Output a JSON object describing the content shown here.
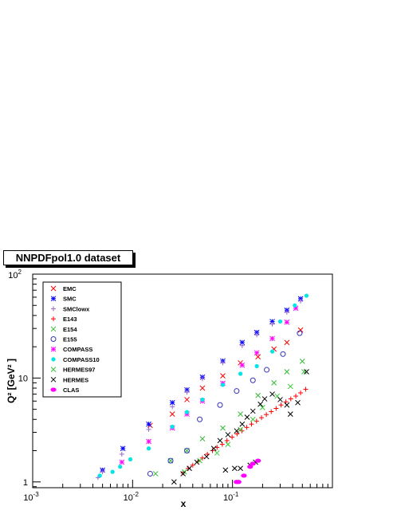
{
  "title": "NNPDFpol1.0 dataset",
  "chart_data": {
    "type": "scatter",
    "xlabel": "x",
    "ylabel": "Q² [GeV² ]",
    "xscale": "log",
    "yscale": "log",
    "xlim": [
      0.001,
      1.0
    ],
    "ylim": [
      0.88,
      100
    ],
    "x_tick_labels": [
      {
        "value": 0.001,
        "base": "10",
        "exp": "-3"
      },
      {
        "value": 0.01,
        "base": "10",
        "exp": "-2"
      },
      {
        "value": 0.1,
        "base": "10",
        "exp": "-1"
      }
    ],
    "y_tick_labels": [
      {
        "value": 1,
        "text": "1"
      },
      {
        "value": 10,
        "text": "10"
      },
      {
        "value": 100,
        "base": "10",
        "exp": "2"
      }
    ],
    "grid": false,
    "legend_position": "top-left",
    "series": [
      {
        "name": "EMC",
        "marker": "x",
        "color": "#ff0000",
        "points": [
          [
            0.015,
            3.5
          ],
          [
            0.025,
            4.5
          ],
          [
            0.035,
            6.2
          ],
          [
            0.05,
            8.0
          ],
          [
            0.08,
            10.5
          ],
          [
            0.12,
            14.0
          ],
          [
            0.18,
            16.0
          ],
          [
            0.26,
            19.0
          ],
          [
            0.35,
            22.0
          ],
          [
            0.48,
            29.0
          ]
        ]
      },
      {
        "name": "SMC",
        "marker": "asterisk",
        "color": "#0000ff",
        "points": [
          [
            0.005,
            1.3
          ],
          [
            0.008,
            2.1
          ],
          [
            0.0145,
            3.6
          ],
          [
            0.025,
            5.8
          ],
          [
            0.035,
            7.7
          ],
          [
            0.05,
            10.2
          ],
          [
            0.08,
            14.6
          ],
          [
            0.125,
            22.0
          ],
          [
            0.175,
            27.5
          ],
          [
            0.25,
            35.0
          ],
          [
            0.35,
            45.0
          ],
          [
            0.48,
            58.0
          ]
        ]
      },
      {
        "name": "SMClowx",
        "marker": "plus",
        "color": "#9966cc",
        "points": [
          [
            0.0045,
            1.1
          ],
          [
            0.005,
            1.25
          ],
          [
            0.0078,
            1.85
          ],
          [
            0.0145,
            3.2
          ],
          [
            0.025,
            5.3
          ],
          [
            0.035,
            7.3
          ],
          [
            0.05,
            9.8
          ],
          [
            0.08,
            14.0
          ],
          [
            0.125,
            20.5
          ],
          [
            0.175,
            26.0
          ],
          [
            0.25,
            33.0
          ],
          [
            0.35,
            43.0
          ],
          [
            0.48,
            55.0
          ]
        ]
      },
      {
        "name": "E143",
        "marker": "plus",
        "color": "#ff0000",
        "points": [
          [
            0.032,
            1.22
          ],
          [
            0.036,
            1.35
          ],
          [
            0.04,
            1.45
          ],
          [
            0.045,
            1.57
          ],
          [
            0.05,
            1.7
          ],
          [
            0.056,
            1.85
          ],
          [
            0.063,
            2.0
          ],
          [
            0.07,
            2.15
          ],
          [
            0.079,
            2.3
          ],
          [
            0.088,
            2.5
          ],
          [
            0.099,
            2.7
          ],
          [
            0.111,
            2.9
          ],
          [
            0.124,
            3.1
          ],
          [
            0.139,
            3.35
          ],
          [
            0.155,
            3.6
          ],
          [
            0.174,
            3.85
          ],
          [
            0.195,
            4.15
          ],
          [
            0.218,
            4.45
          ],
          [
            0.244,
            4.75
          ],
          [
            0.273,
            5.1
          ],
          [
            0.306,
            5.5
          ],
          [
            0.342,
            5.9
          ],
          [
            0.383,
            6.3
          ],
          [
            0.43,
            6.7
          ],
          [
            0.48,
            7.2
          ],
          [
            0.54,
            7.8
          ]
        ]
      },
      {
        "name": "E154",
        "marker": "x",
        "color": "#33bb33",
        "points": [
          [
            0.017,
            1.2
          ],
          [
            0.024,
            1.6
          ],
          [
            0.035,
            2.0
          ],
          [
            0.05,
            2.6
          ],
          [
            0.08,
            3.3
          ],
          [
            0.12,
            4.5
          ],
          [
            0.18,
            6.8
          ],
          [
            0.26,
            9.0
          ],
          [
            0.35,
            11.5
          ],
          [
            0.5,
            14.5
          ]
        ]
      },
      {
        "name": "E155",
        "marker": "circle",
        "color": "#3333bb",
        "points": [
          [
            0.015,
            1.2
          ],
          [
            0.024,
            1.6
          ],
          [
            0.035,
            2.0
          ],
          [
            0.047,
            4.0
          ],
          [
            0.075,
            5.5
          ],
          [
            0.11,
            7.5
          ],
          [
            0.16,
            9.5
          ],
          [
            0.22,
            12.0
          ],
          [
            0.32,
            17.0
          ],
          [
            0.47,
            27.0
          ]
        ]
      },
      {
        "name": "COMPASS",
        "marker": "asterisk",
        "color": "#ff00ff",
        "points": [
          [
            0.0078,
            1.55
          ],
          [
            0.0145,
            2.45
          ],
          [
            0.025,
            3.3
          ],
          [
            0.035,
            4.5
          ],
          [
            0.05,
            6.0
          ],
          [
            0.08,
            8.9
          ],
          [
            0.125,
            13.3
          ],
          [
            0.175,
            17.5
          ],
          [
            0.25,
            24.0
          ],
          [
            0.35,
            34.5
          ],
          [
            0.43,
            47.0
          ]
        ]
      },
      {
        "name": "COMPASS10",
        "marker": "filled-circle",
        "color": "#00e5e5",
        "points": [
          [
            0.0047,
            1.15
          ],
          [
            0.0063,
            1.25
          ],
          [
            0.0075,
            1.4
          ],
          [
            0.0095,
            1.65
          ],
          [
            0.0145,
            2.1
          ],
          [
            0.025,
            3.4
          ],
          [
            0.035,
            4.7
          ],
          [
            0.05,
            6.2
          ],
          [
            0.08,
            8.6
          ],
          [
            0.12,
            11.0
          ],
          [
            0.175,
            13.0
          ],
          [
            0.25,
            18.0
          ],
          [
            0.3,
            35.0
          ],
          [
            0.42,
            50.0
          ],
          [
            0.55,
            62.0
          ]
        ]
      },
      {
        "name": "HERMES97",
        "marker": "x",
        "color": "#33cc33",
        "points": [
          [
            0.033,
            1.25
          ],
          [
            0.047,
            1.6
          ],
          [
            0.07,
            1.9
          ],
          [
            0.09,
            2.3
          ],
          [
            0.12,
            3.2
          ],
          [
            0.16,
            4.0
          ],
          [
            0.2,
            5.2
          ],
          [
            0.28,
            6.7
          ],
          [
            0.38,
            8.3
          ],
          [
            0.52,
            11.5
          ]
        ]
      },
      {
        "name": "HERMES",
        "marker": "x",
        "color": "#000000",
        "points": [
          [
            0.026,
            1.0
          ],
          [
            0.032,
            1.2
          ],
          [
            0.037,
            1.35
          ],
          [
            0.044,
            1.55
          ],
          [
            0.055,
            1.75
          ],
          [
            0.065,
            2.1
          ],
          [
            0.075,
            2.5
          ],
          [
            0.085,
            1.3
          ],
          [
            0.09,
            2.85
          ],
          [
            0.105,
            1.35
          ],
          [
            0.11,
            3.1
          ],
          [
            0.12,
            1.35
          ],
          [
            0.125,
            3.6
          ],
          [
            0.14,
            4.2
          ],
          [
            0.15,
            1.45
          ],
          [
            0.16,
            4.8
          ],
          [
            0.17,
            1.55
          ],
          [
            0.19,
            5.6
          ],
          [
            0.21,
            6.3
          ],
          [
            0.25,
            7.0
          ],
          [
            0.3,
            6.2
          ],
          [
            0.35,
            5.5
          ],
          [
            0.45,
            5.8
          ],
          [
            0.55,
            11.5
          ],
          [
            0.38,
            4.5
          ]
        ]
      },
      {
        "name": "CLAS",
        "marker": "filled-ellipse",
        "color": "#ff00ff",
        "points": [
          [
            0.11,
            1.0
          ],
          [
            0.115,
            1.0
          ],
          [
            0.13,
            1.15
          ],
          [
            0.15,
            1.4
          ],
          [
            0.16,
            1.5
          ],
          [
            0.18,
            1.6
          ]
        ]
      }
    ]
  }
}
